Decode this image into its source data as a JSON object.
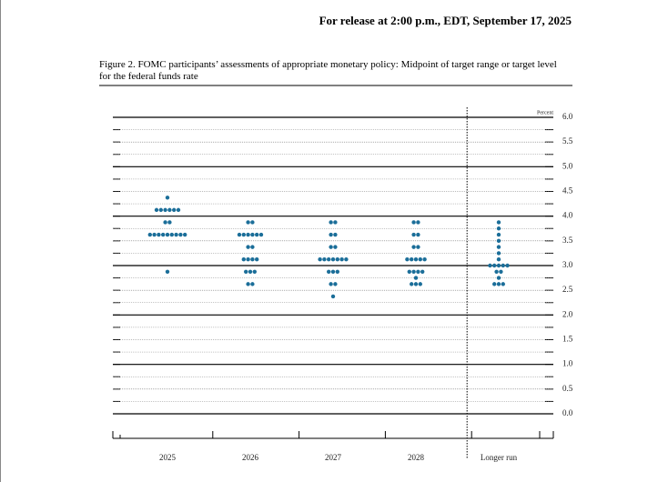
{
  "header": "For release at 2:00 p.m., EDT, September 17, 2025",
  "chart_data": {
    "type": "dot",
    "title": "Figure 2. FOMC participants’ assessments of appropriate monetary policy: Midpoint of target range or target level for the federal funds rate",
    "y_label": "Percent",
    "categories": [
      "2025",
      "2026",
      "2027",
      "2028",
      "Longer run"
    ],
    "color": "#1b6e99",
    "dots": [
      {
        "levels": [
          {
            "value": 4.375,
            "count": 1
          },
          {
            "value": 4.125,
            "count": 6
          },
          {
            "value": 3.875,
            "count": 2
          },
          {
            "value": 3.625,
            "count": 9
          },
          {
            "value": 2.875,
            "count": 1
          }
        ]
      },
      {
        "levels": [
          {
            "value": 3.875,
            "count": 2
          },
          {
            "value": 3.625,
            "count": 6
          },
          {
            "value": 3.375,
            "count": 2
          },
          {
            "value": 3.125,
            "count": 4
          },
          {
            "value": 2.875,
            "count": 3
          },
          {
            "value": 2.625,
            "count": 2
          }
        ]
      },
      {
        "levels": [
          {
            "value": 3.875,
            "count": 2
          },
          {
            "value": 3.625,
            "count": 2
          },
          {
            "value": 3.375,
            "count": 2
          },
          {
            "value": 3.125,
            "count": 7
          },
          {
            "value": 2.875,
            "count": 3
          },
          {
            "value": 2.625,
            "count": 2
          },
          {
            "value": 2.375,
            "count": 1
          }
        ]
      },
      {
        "levels": [
          {
            "value": 3.875,
            "count": 2
          },
          {
            "value": 3.625,
            "count": 2
          },
          {
            "value": 3.375,
            "count": 2
          },
          {
            "value": 3.125,
            "count": 5
          },
          {
            "value": 2.875,
            "count": 4
          },
          {
            "value": 2.75,
            "count": 1
          },
          {
            "value": 2.625,
            "count": 3
          }
        ]
      },
      {
        "levels": [
          {
            "value": 3.875,
            "count": 1
          },
          {
            "value": 3.75,
            "count": 1
          },
          {
            "value": 3.625,
            "count": 1
          },
          {
            "value": 3.5,
            "count": 1
          },
          {
            "value": 3.375,
            "count": 1
          },
          {
            "value": 3.25,
            "count": 1
          },
          {
            "value": 3.125,
            "count": 1
          },
          {
            "value": 3.0,
            "count": 5
          },
          {
            "value": 2.875,
            "count": 2
          },
          {
            "value": 2.75,
            "count": 1
          },
          {
            "value": 2.625,
            "count": 3
          }
        ]
      }
    ],
    "ylim": [
      0,
      6
    ],
    "yticks": [
      {
        "value": 0,
        "label": "0.0"
      },
      {
        "value": 0.5,
        "label": "0.5"
      },
      {
        "value": 1,
        "label": "1.0"
      },
      {
        "value": 1.5,
        "label": "1.5"
      },
      {
        "value": 2,
        "label": "2.0"
      },
      {
        "value": 2.5,
        "label": "2.5"
      },
      {
        "value": 3,
        "label": "3.0"
      },
      {
        "value": 3.5,
        "label": "3.5"
      },
      {
        "value": 4,
        "label": "4.0"
      },
      {
        "value": 4.5,
        "label": "4.5"
      },
      {
        "value": 5,
        "label": "5.0"
      },
      {
        "value": 5.5,
        "label": "5.5"
      },
      {
        "value": 6,
        "label": "6.0"
      }
    ],
    "grid": true
  }
}
